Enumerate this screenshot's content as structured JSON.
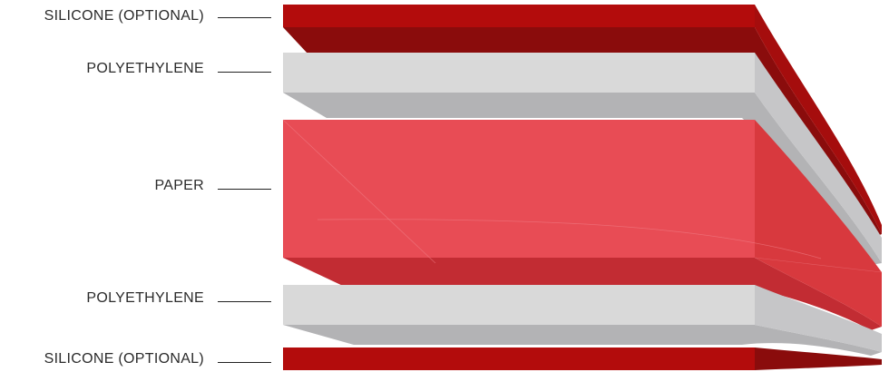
{
  "layers": [
    {
      "label": "SILICONE (OPTIONAL)",
      "color": "#b30c0c"
    },
    {
      "label": "POLYETHYLENE",
      "color": "#d9d9d9"
    },
    {
      "label": "PAPER",
      "color": "#e84c55"
    },
    {
      "label": "POLYETHYLENE",
      "color": "#d9d9d9"
    },
    {
      "label": "SILICONE (OPTIONAL)",
      "color": "#b30c0c"
    }
  ]
}
